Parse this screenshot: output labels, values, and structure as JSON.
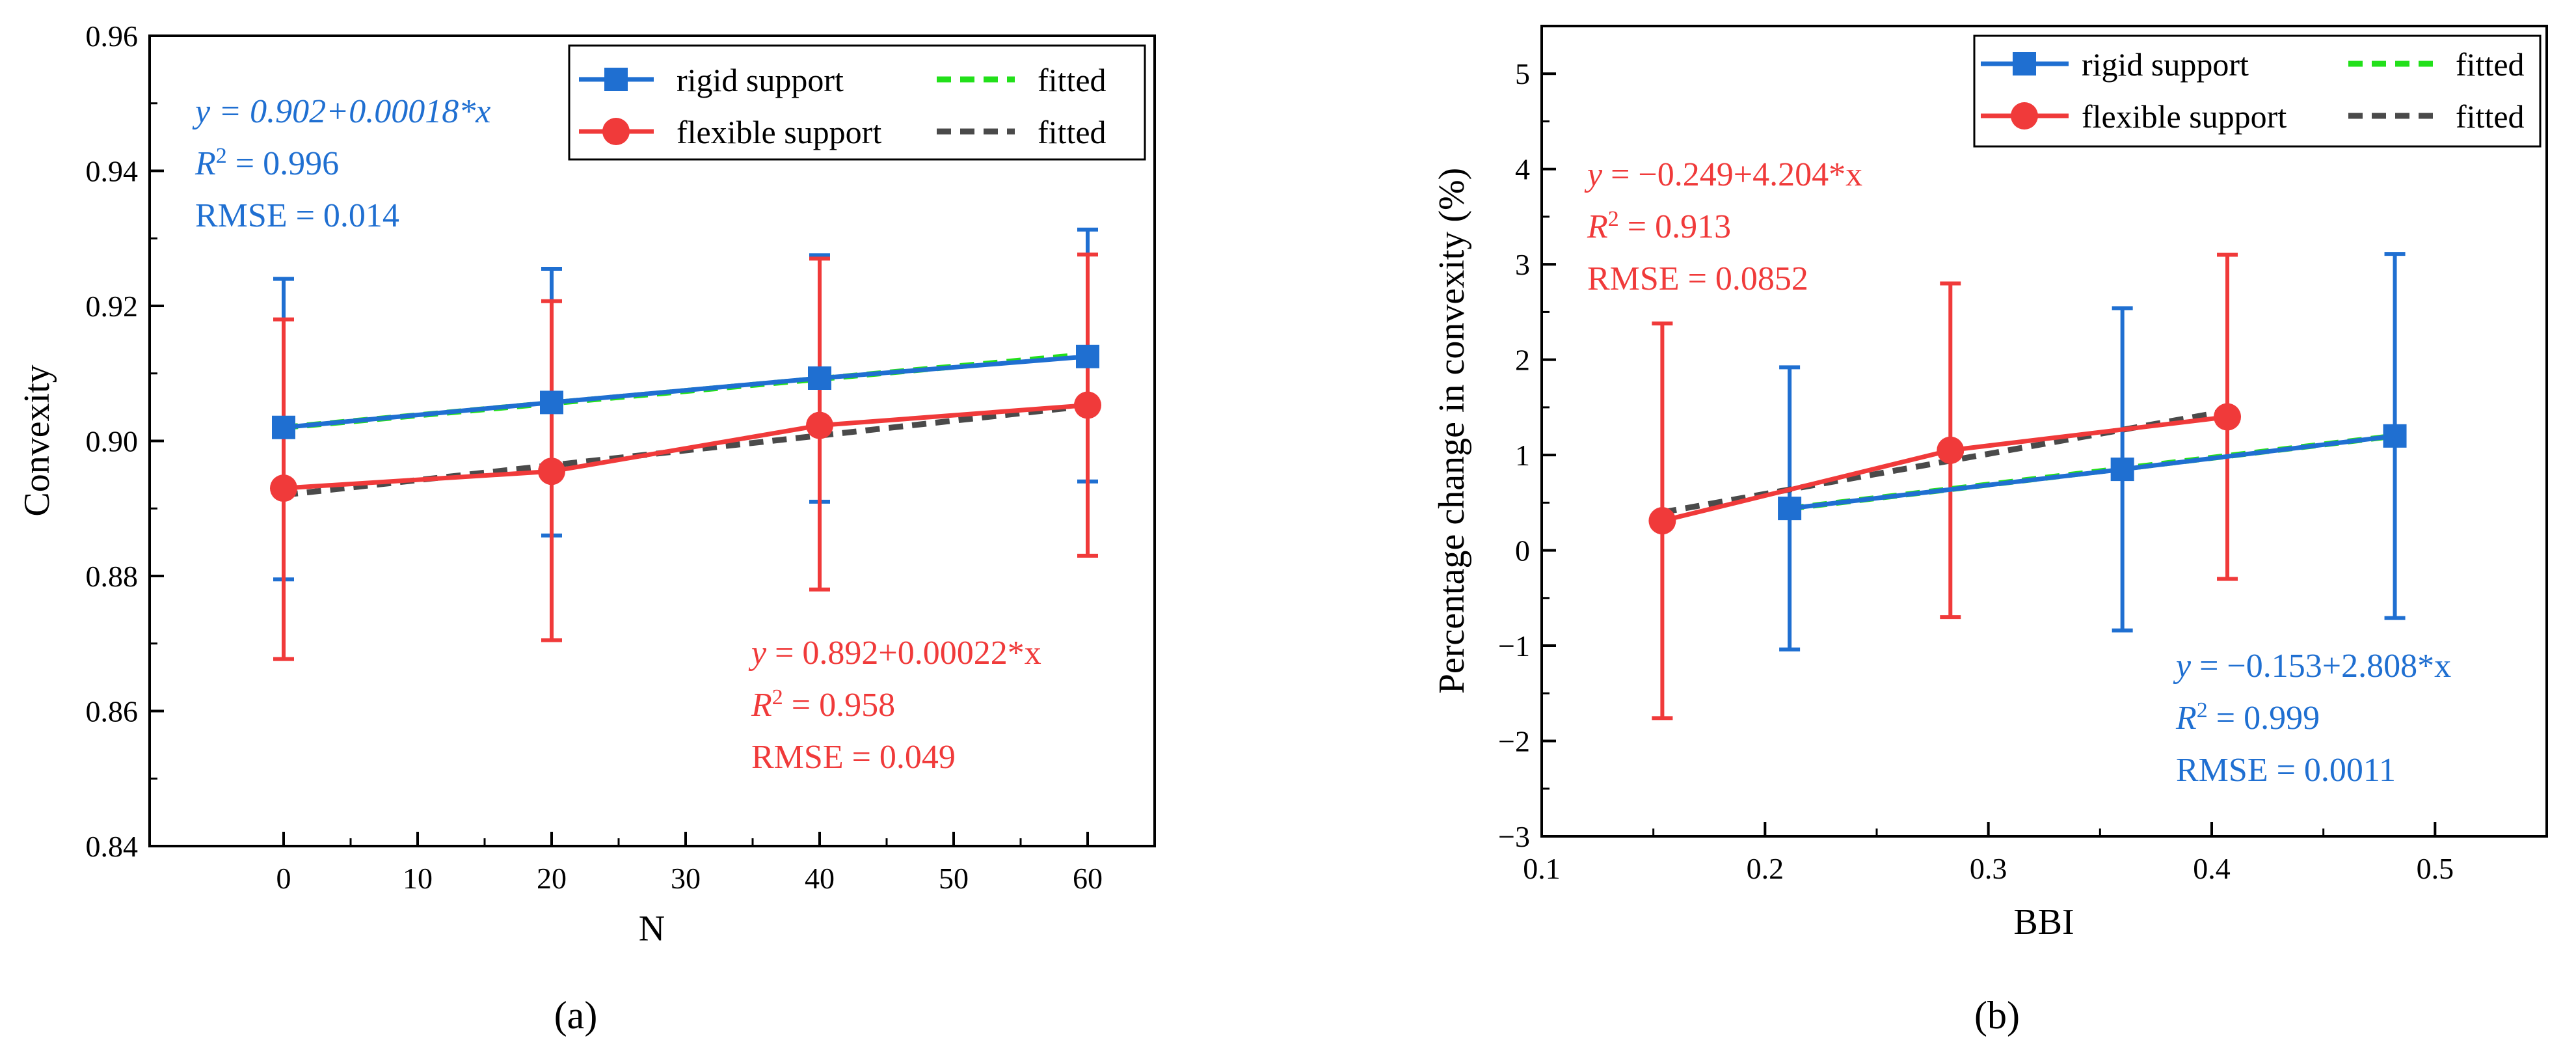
{
  "colors": {
    "rigid": "#1f6fd1",
    "flexible": "#f03a3a",
    "fitted_rigid": "#22e01a",
    "fitted_flexible": "#4a4a4a"
  },
  "chart_data": [
    {
      "type": "line",
      "panel_label": "(a)",
      "xlabel": "N",
      "ylabel": "Convexity",
      "xlim": [
        -10,
        65
      ],
      "ylim": [
        0.84,
        0.96
      ],
      "xticks": [
        0,
        10,
        20,
        30,
        40,
        50,
        60
      ],
      "yticks": [
        0.84,
        0.86,
        0.88,
        0.9,
        0.92,
        0.94,
        0.96
      ],
      "xtick_labels": [
        "0",
        "10",
        "20",
        "30",
        "40",
        "50",
        "60"
      ],
      "ytick_labels": [
        "0.84",
        "0.86",
        "0.88",
        "0.90",
        "0.92",
        "0.94",
        "0.96"
      ],
      "legend": [
        "rigid support",
        "fitted",
        "flexible support",
        "fitted"
      ],
      "legend_position": "top-right",
      "series": [
        {
          "name": "rigid support",
          "marker": "square",
          "color_key": "rigid",
          "x": [
            0,
            20,
            40,
            60
          ],
          "y": [
            0.902,
            0.9057,
            0.9093,
            0.9125
          ],
          "err_low": [
            0.8795,
            0.886,
            0.891,
            0.894
          ],
          "err_high": [
            0.924,
            0.9255,
            0.9275,
            0.9313
          ]
        },
        {
          "name": "flexible support",
          "marker": "circle",
          "color_key": "flexible",
          "x": [
            0,
            20,
            40,
            60
          ],
          "y": [
            0.893,
            0.8955,
            0.9023,
            0.9053
          ],
          "err_low": [
            0.8677,
            0.8705,
            0.878,
            0.883
          ],
          "err_high": [
            0.918,
            0.9207,
            0.927,
            0.9276
          ]
        }
      ],
      "fits": [
        {
          "name": "fitted",
          "color_key": "fitted_rigid",
          "intercept": 0.902,
          "slope": 0.00018,
          "x_range": [
            0,
            60
          ]
        },
        {
          "name": "fitted",
          "color_key": "fitted_flexible",
          "intercept": 0.892,
          "slope": 0.00022,
          "x_range": [
            0,
            60
          ]
        }
      ],
      "annotations": [
        {
          "color_key": "rigid",
          "lines": [
            "y = 0.902+0.00018*x",
            "R2 = 0.996",
            "RMSE = 0.014"
          ]
        },
        {
          "color_key": "flexible",
          "lines": [
            "y = 0.892+0.00022*x",
            "R2 = 0.958",
            "RMSE = 0.049"
          ]
        }
      ]
    },
    {
      "type": "line",
      "panel_label": "(b)",
      "xlabel": "BBI",
      "ylabel": "Percentage change in convexity (%)",
      "xlim": [
        0.1,
        0.55
      ],
      "ylim": [
        -3,
        5.5
      ],
      "xticks": [
        0.1,
        0.2,
        0.3,
        0.4,
        0.5
      ],
      "yticks": [
        -3,
        -2,
        -1,
        0,
        1,
        2,
        3,
        4,
        5
      ],
      "xtick_labels": [
        "0.1",
        "0.2",
        "0.3",
        "0.4",
        "0.5"
      ],
      "ytick_labels": [
        "−3",
        "−2",
        "−1",
        "0",
        "1",
        "2",
        "3",
        "4",
        "5"
      ],
      "legend": [
        "rigid support",
        "fitted",
        "flexible support",
        "fitted"
      ],
      "legend_position": "top-right",
      "series": [
        {
          "name": "rigid support",
          "marker": "square",
          "color_key": "rigid",
          "x": [
            0.211,
            0.36,
            0.482
          ],
          "y": [
            0.44,
            0.85,
            1.2
          ],
          "err_low": [
            -1.04,
            -0.84,
            -0.71
          ],
          "err_high": [
            1.92,
            2.54,
            3.11
          ]
        },
        {
          "name": "flexible support",
          "marker": "circle",
          "color_key": "flexible",
          "x": [
            0.154,
            0.283,
            0.407
          ],
          "y": [
            0.31,
            1.05,
            1.4
          ],
          "err_low": [
            -1.76,
            -0.7,
            -0.3
          ],
          "err_high": [
            2.38,
            2.8,
            3.1
          ]
        }
      ],
      "fits": [
        {
          "name": "fitted",
          "color_key": "fitted_rigid",
          "intercept": -0.153,
          "slope": 2.808,
          "x_range": [
            0.211,
            0.482
          ]
        },
        {
          "name": "fitted",
          "color_key": "fitted_flexible",
          "intercept": -0.249,
          "slope": 4.204,
          "x_range": [
            0.154,
            0.407
          ]
        }
      ],
      "annotations": [
        {
          "color_key": "flexible",
          "lines": [
            "y = −0.249+4.204*x",
            "R2 = 0.913",
            "RMSE = 0.0852"
          ]
        },
        {
          "color_key": "rigid",
          "lines": [
            "y = −0.153+2.808*x",
            "R2 = 0.999",
            "RMSE = 0.0011"
          ]
        }
      ]
    }
  ]
}
